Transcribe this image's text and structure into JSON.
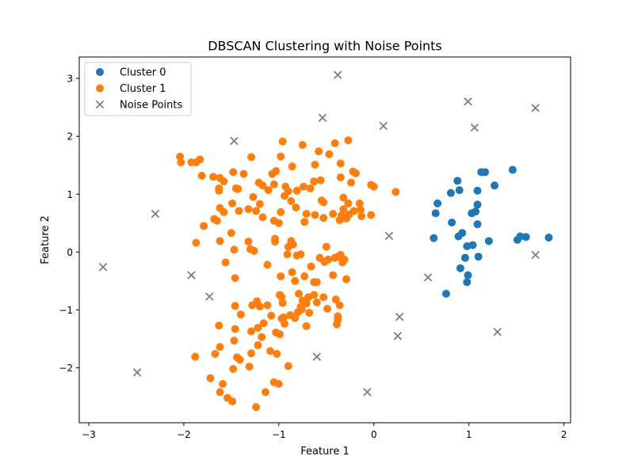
{
  "chart_data": {
    "type": "scatter",
    "title": "DBSCAN Clustering with Noise Points",
    "xlabel": "Feature 1",
    "ylabel": "Feature 2",
    "xlim": [
      -3.1,
      2.07
    ],
    "ylim": [
      -2.95,
      3.37
    ],
    "xticks": [
      -3,
      -2,
      -1,
      0,
      1,
      2
    ],
    "yticks": [
      -2,
      -1,
      0,
      1,
      2,
      3
    ],
    "xtick_labels": [
      "−3",
      "−2",
      "−1",
      "0",
      "1",
      "2"
    ],
    "ytick_labels": [
      "−2",
      "−1",
      "0",
      "1",
      "2",
      "3"
    ],
    "grid": false,
    "legend_position": "top-left",
    "series": [
      {
        "name": "Cluster 0",
        "color": "#1f77b4",
        "marker": "circle",
        "points": [
          [
            0.65,
            0.67
          ],
          [
            0.67,
            0.84
          ],
          [
            0.81,
            1.02
          ],
          [
            0.88,
            1.23
          ],
          [
            0.9,
            1.07
          ],
          [
            1.03,
            0.67
          ],
          [
            1.07,
            0.7
          ],
          [
            1.09,
            0.82
          ],
          [
            1.09,
            1.06
          ],
          [
            1.13,
            1.38
          ],
          [
            1.17,
            1.38
          ],
          [
            1.27,
            1.15
          ],
          [
            1.46,
            1.42
          ],
          [
            0.82,
            0.51
          ],
          [
            0.89,
            0.27
          ],
          [
            0.93,
            0.33
          ],
          [
            1.09,
            0.48
          ],
          [
            0.63,
            0.24
          ],
          [
            0.98,
            0.1
          ],
          [
            1.04,
            0.12
          ],
          [
            1.21,
            0.19
          ],
          [
            1.51,
            0.21
          ],
          [
            1.54,
            0.27
          ],
          [
            1.6,
            0.26
          ],
          [
            1.84,
            0.25
          ],
          [
            0.91,
            -0.28
          ],
          [
            0.96,
            -0.1
          ],
          [
            1.1,
            -0.08
          ],
          [
            0.99,
            -0.4
          ],
          [
            0.98,
            -0.52
          ],
          [
            0.76,
            -0.72
          ]
        ]
      },
      {
        "name": "Cluster 1",
        "color": "#ff7f0e",
        "marker": "circle",
        "points": [
          [
            -2.04,
            1.65
          ],
          [
            -2.03,
            1.55
          ],
          [
            -1.92,
            1.55
          ],
          [
            -1.87,
            1.55
          ],
          [
            -1.83,
            1.6
          ],
          [
            -1.81,
            1.32
          ],
          [
            -1.69,
            1.3
          ],
          [
            -1.62,
            1.28
          ],
          [
            -1.63,
            1.1
          ],
          [
            -1.63,
            1.06
          ],
          [
            -1.58,
            1.22
          ],
          [
            -1.48,
            1.38
          ],
          [
            -1.45,
            1.1
          ],
          [
            -1.37,
            1.35
          ],
          [
            -1.29,
            1.64
          ],
          [
            -1.21,
            1.2
          ],
          [
            -1.17,
            1.15
          ],
          [
            -1.11,
            1.07
          ],
          [
            -1.07,
            1.35
          ],
          [
            -1.05,
            1.17
          ],
          [
            -1.03,
            1.4
          ],
          [
            -0.98,
            1.65
          ],
          [
            -0.96,
            1.91
          ],
          [
            -0.93,
            1.13
          ],
          [
            -0.86,
            1.48
          ],
          [
            -0.81,
            1.06
          ],
          [
            -0.75,
            1.85
          ],
          [
            -0.74,
            1.13
          ],
          [
            -0.67,
            1.1
          ],
          [
            -0.63,
            1.22
          ],
          [
            -0.62,
            1.51
          ],
          [
            -0.58,
            1.74
          ],
          [
            -0.56,
            1.24
          ],
          [
            -0.47,
            1.69
          ],
          [
            -0.41,
            1.88
          ],
          [
            -0.35,
            1.53
          ],
          [
            -0.35,
            1.29
          ],
          [
            -0.32,
            0.94
          ],
          [
            -0.27,
            1.93
          ],
          [
            -0.24,
            1.2
          ],
          [
            -0.22,
            1.39
          ],
          [
            -0.19,
            1.36
          ],
          [
            -0.15,
            0.84
          ],
          [
            -0.03,
            1.16
          ],
          [
            0.0,
            1.13
          ],
          [
            0.23,
            1.04
          ],
          [
            -1.65,
            0.54
          ],
          [
            -1.62,
            0.76
          ],
          [
            -1.58,
            0.69
          ],
          [
            -1.49,
            0.84
          ],
          [
            -1.43,
            1.09
          ],
          [
            -1.42,
            0.71
          ],
          [
            -1.32,
            0.74
          ],
          [
            -1.27,
            0.95
          ],
          [
            -1.24,
            0.71
          ],
          [
            -1.2,
            0.83
          ],
          [
            -1.17,
            0.6
          ],
          [
            -1.05,
            0.54
          ],
          [
            -1.0,
            0.5
          ],
          [
            -0.98,
            0.69
          ],
          [
            -0.94,
            0.97
          ],
          [
            -0.9,
            1.05
          ],
          [
            -0.87,
            0.88
          ],
          [
            -0.82,
            0.77
          ],
          [
            -0.73,
            0.52
          ],
          [
            -0.71,
            0.66
          ],
          [
            -0.62,
            0.64
          ],
          [
            -0.55,
            0.89
          ],
          [
            -0.53,
            0.86
          ],
          [
            -0.53,
            0.59
          ],
          [
            -0.43,
            0.66
          ],
          [
            -0.36,
            0.55
          ],
          [
            -0.34,
            0.63
          ],
          [
            -0.32,
            0.74
          ],
          [
            -0.29,
            0.58
          ],
          [
            -0.27,
            0.84
          ],
          [
            -0.26,
            0.65
          ],
          [
            -0.21,
            0.71
          ],
          [
            -0.13,
            0.62
          ],
          [
            -0.14,
            0.73
          ],
          [
            -0.03,
            0.64
          ],
          [
            -1.87,
            0.16
          ],
          [
            -1.79,
            0.45
          ],
          [
            -1.68,
            0.57
          ],
          [
            -1.62,
            0.19
          ],
          [
            -1.56,
            -0.18
          ],
          [
            -1.5,
            0.33
          ],
          [
            -1.47,
            0.04
          ],
          [
            -1.46,
            -0.45
          ],
          [
            -1.32,
            0.18
          ],
          [
            -1.3,
            0.05
          ],
          [
            -1.26,
            0.02
          ],
          [
            -1.12,
            -0.22
          ],
          [
            -1.04,
            0.23
          ],
          [
            -1.04,
            0.18
          ],
          [
            -0.98,
            -0.42
          ],
          [
            -0.91,
            -0.04
          ],
          [
            -0.9,
            0.09
          ],
          [
            -0.87,
            0.19
          ],
          [
            -0.85,
            0.13
          ],
          [
            -0.81,
            -0.06
          ],
          [
            -0.77,
            -0.04
          ],
          [
            -0.73,
            -0.42
          ],
          [
            -0.66,
            -0.25
          ],
          [
            -0.57,
            -0.1
          ],
          [
            -0.6,
            -0.52
          ],
          [
            -0.52,
            -0.17
          ],
          [
            -0.5,
            0.09
          ],
          [
            -0.48,
            -0.13
          ],
          [
            -0.43,
            -0.4
          ],
          [
            -0.41,
            -0.1
          ],
          [
            -0.38,
            -0.08
          ],
          [
            -0.35,
            -0.05
          ],
          [
            -0.33,
            -0.18
          ],
          [
            -0.29,
            -0.47
          ],
          [
            -0.31,
            -0.13
          ],
          [
            -0.86,
            -0.35
          ],
          [
            -0.83,
            -0.5
          ],
          [
            -0.79,
            -0.72
          ],
          [
            -0.75,
            -0.84
          ],
          [
            -0.68,
            -1.05
          ],
          [
            -0.63,
            -0.74
          ],
          [
            -0.6,
            -0.87
          ],
          [
            -0.53,
            -0.78
          ],
          [
            -0.49,
            -0.98
          ],
          [
            -0.4,
            -0.82
          ],
          [
            -0.36,
            -0.92
          ],
          [
            -1.88,
            -1.81
          ],
          [
            -1.72,
            -2.18
          ],
          [
            -1.67,
            -1.76
          ],
          [
            -1.63,
            -1.27
          ],
          [
            -1.62,
            -1.64
          ],
          [
            -1.62,
            -2.42
          ],
          [
            -1.59,
            -2.28
          ],
          [
            -1.54,
            -2.52
          ],
          [
            -1.49,
            -2.58
          ],
          [
            -1.48,
            -2.02
          ],
          [
            -1.47,
            -1.53
          ],
          [
            -1.46,
            -0.93
          ],
          [
            -1.46,
            -1.33
          ],
          [
            -1.44,
            -1.82
          ],
          [
            -1.4,
            -1.08
          ],
          [
            -1.41,
            -1.86
          ],
          [
            -1.31,
            -1.98
          ],
          [
            -1.29,
            -1.75
          ],
          [
            -1.28,
            -0.92
          ],
          [
            -1.24,
            -2.68
          ],
          [
            -1.23,
            -0.85
          ],
          [
            -1.22,
            -1.31
          ],
          [
            -1.2,
            -0.94
          ],
          [
            -1.18,
            -1.47
          ],
          [
            -1.14,
            -2.42
          ],
          [
            -1.12,
            -0.92
          ],
          [
            -1.09,
            -1.71
          ],
          [
            -1.05,
            -2.25
          ],
          [
            -1.03,
            -1.39
          ],
          [
            -1.02,
            -1.76
          ],
          [
            -1.0,
            -2.28
          ],
          [
            -0.99,
            -1.42
          ],
          [
            -0.97,
            -1.15
          ],
          [
            -0.96,
            -0.88
          ],
          [
            -0.94,
            -1.24
          ],
          [
            -0.9,
            -1.97
          ],
          [
            -0.88,
            -1.09
          ],
          [
            -0.83,
            -1.14
          ],
          [
            -0.8,
            -1.04
          ],
          [
            -0.76,
            -0.99
          ],
          [
            -0.71,
            -1.28
          ],
          [
            -0.38,
            -1.17
          ],
          [
            -0.39,
            -1.25
          ],
          [
            -0.38,
            -1.11
          ],
          [
            -0.63,
            -0.52
          ],
          [
            -0.77,
            -0.95
          ],
          [
            -0.71,
            -0.89
          ],
          [
            -0.69,
            -0.78
          ],
          [
            -1.08,
            -1.1
          ],
          [
            -0.99,
            -0.74
          ],
          [
            -0.97,
            -0.78
          ],
          [
            -0.95,
            -1.13
          ],
          [
            -1.16,
            -1.23
          ],
          [
            -1.22,
            -1.61
          ],
          [
            -1.29,
            -1.37
          ]
        ]
      },
      {
        "name": "Noise Points",
        "color": "#7f7f7f",
        "marker": "x",
        "points": [
          [
            -0.38,
            3.06
          ],
          [
            0.99,
            2.6
          ],
          [
            1.7,
            2.49
          ],
          [
            -0.54,
            2.32
          ],
          [
            0.1,
            2.18
          ],
          [
            1.06,
            2.15
          ],
          [
            -1.47,
            1.92
          ],
          [
            -2.3,
            0.66
          ],
          [
            0.16,
            0.28
          ],
          [
            1.7,
            -0.05
          ],
          [
            -2.85,
            -0.26
          ],
          [
            -1.92,
            -0.4
          ],
          [
            0.57,
            -0.44
          ],
          [
            -1.73,
            -0.77
          ],
          [
            0.27,
            -1.12
          ],
          [
            0.25,
            -1.45
          ],
          [
            1.3,
            -1.38
          ],
          [
            -0.6,
            -1.81
          ],
          [
            -2.49,
            -2.08
          ],
          [
            -0.07,
            -2.42
          ]
        ]
      }
    ]
  }
}
